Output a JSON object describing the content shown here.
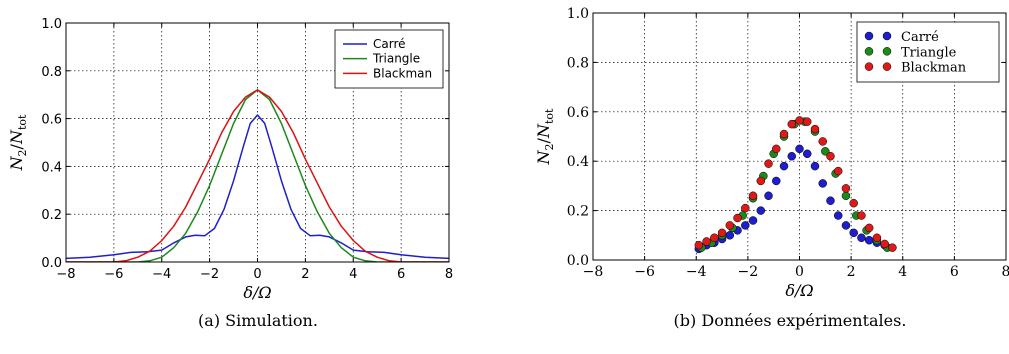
{
  "chart_data": [
    {
      "type": "line",
      "caption": "(a) Simulation.",
      "xlabel_main": "δ/Ω",
      "ylabel_main": "N",
      "ylabel_num_sub": "2",
      "ylabel_den_main": "N",
      "ylabel_den_sub": "tot",
      "xlim": [
        -8,
        8
      ],
      "ylim": [
        0,
        1
      ],
      "xticks": [
        "−8",
        "−6",
        "−4",
        "−2",
        "0",
        "2",
        "4",
        "6",
        "8"
      ],
      "yticks": [
        "0.0",
        "0.2",
        "0.4",
        "0.6",
        "0.8",
        "1.0"
      ],
      "grid": true,
      "legend_position": "top-right",
      "series": [
        {
          "name": "Carré",
          "color": "#1f1fcc",
          "points": [
            [
              -8,
              0.015
            ],
            [
              -7,
              0.02
            ],
            [
              -6,
              0.03
            ],
            [
              -5.3,
              0.04
            ],
            [
              -4.6,
              0.043
            ],
            [
              -4,
              0.05
            ],
            [
              -3.5,
              0.08
            ],
            [
              -3,
              0.105
            ],
            [
              -2.6,
              0.112
            ],
            [
              -2.2,
              0.11
            ],
            [
              -1.8,
              0.14
            ],
            [
              -1.4,
              0.22
            ],
            [
              -1,
              0.34
            ],
            [
              -0.6,
              0.48
            ],
            [
              -0.3,
              0.58
            ],
            [
              0,
              0.615
            ],
            [
              0.3,
              0.58
            ],
            [
              0.6,
              0.48
            ],
            [
              1,
              0.34
            ],
            [
              1.4,
              0.22
            ],
            [
              1.8,
              0.14
            ],
            [
              2.2,
              0.11
            ],
            [
              2.6,
              0.112
            ],
            [
              3,
              0.105
            ],
            [
              3.5,
              0.08
            ],
            [
              4,
              0.05
            ],
            [
              4.6,
              0.043
            ],
            [
              5.3,
              0.04
            ],
            [
              6,
              0.03
            ],
            [
              7,
              0.02
            ],
            [
              8,
              0.015
            ]
          ]
        },
        {
          "name": "Triangle",
          "color": "#1a8a1a",
          "points": [
            [
              -8,
              0
            ],
            [
              -5,
              0
            ],
            [
              -4.5,
              0.005
            ],
            [
              -4,
              0.02
            ],
            [
              -3.5,
              0.06
            ],
            [
              -3,
              0.12
            ],
            [
              -2.5,
              0.21
            ],
            [
              -2,
              0.32
            ],
            [
              -1.5,
              0.45
            ],
            [
              -1,
              0.58
            ],
            [
              -0.5,
              0.68
            ],
            [
              0,
              0.72
            ],
            [
              0.5,
              0.68
            ],
            [
              1,
              0.58
            ],
            [
              1.5,
              0.45
            ],
            [
              2,
              0.32
            ],
            [
              2.5,
              0.21
            ],
            [
              3,
              0.12
            ],
            [
              3.5,
              0.06
            ],
            [
              4,
              0.02
            ],
            [
              4.5,
              0.005
            ],
            [
              5,
              0
            ],
            [
              8,
              0
            ]
          ]
        },
        {
          "name": "Blackman",
          "color": "#dd1111",
          "points": [
            [
              -8,
              0
            ],
            [
              -6,
              0
            ],
            [
              -5.5,
              0.005
            ],
            [
              -5,
              0.02
            ],
            [
              -4.5,
              0.045
            ],
            [
              -4,
              0.09
            ],
            [
              -3.5,
              0.15
            ],
            [
              -3,
              0.23
            ],
            [
              -2.5,
              0.33
            ],
            [
              -2,
              0.43
            ],
            [
              -1.5,
              0.54
            ],
            [
              -1,
              0.63
            ],
            [
              -0.5,
              0.69
            ],
            [
              0,
              0.72
            ],
            [
              0.5,
              0.69
            ],
            [
              1,
              0.63
            ],
            [
              1.5,
              0.54
            ],
            [
              2,
              0.43
            ],
            [
              2.5,
              0.33
            ],
            [
              3,
              0.23
            ],
            [
              3.5,
              0.15
            ],
            [
              4,
              0.09
            ],
            [
              4.5,
              0.045
            ],
            [
              5,
              0.02
            ],
            [
              5.5,
              0.005
            ],
            [
              6,
              0
            ],
            [
              8,
              0
            ]
          ]
        }
      ]
    },
    {
      "type": "scatter",
      "caption": "(b) Données expérimentales.",
      "xlabel_main": "δ/Ω",
      "ylabel_main": "N",
      "ylabel_num_sub": "2",
      "ylabel_den_main": "N",
      "ylabel_den_sub": "tot",
      "xlim": [
        -8,
        8
      ],
      "ylim": [
        0,
        1
      ],
      "xticks": [
        "−8",
        "−6",
        "−4",
        "−2",
        "0",
        "2",
        "4",
        "6",
        "8"
      ],
      "yticks": [
        "0.0",
        "0.2",
        "0.4",
        "0.6",
        "0.8",
        "1.0"
      ],
      "grid": true,
      "legend_position": "top-right",
      "series": [
        {
          "name": "Carré",
          "color": "#1e1ecc",
          "points": [
            [
              -3.9,
              0.045
            ],
            [
              -3.6,
              0.06
            ],
            [
              -3.3,
              0.07
            ],
            [
              -3,
              0.085
            ],
            [
              -2.7,
              0.1
            ],
            [
              -2.4,
              0.12
            ],
            [
              -2.1,
              0.14
            ],
            [
              -1.8,
              0.16
            ],
            [
              -1.5,
              0.2
            ],
            [
              -1.2,
              0.26
            ],
            [
              -0.9,
              0.32
            ],
            [
              -0.6,
              0.38
            ],
            [
              -0.3,
              0.42
            ],
            [
              0,
              0.45
            ],
            [
              0.3,
              0.43
            ],
            [
              0.6,
              0.38
            ],
            [
              0.9,
              0.31
            ],
            [
              1.2,
              0.24
            ],
            [
              1.5,
              0.18
            ],
            [
              1.8,
              0.14
            ],
            [
              2.1,
              0.11
            ],
            [
              2.4,
              0.09
            ],
            [
              2.7,
              0.08
            ],
            [
              3,
              0.07
            ],
            [
              3.3,
              0.06
            ]
          ]
        },
        {
          "name": "Triangle",
          "color": "#1a8a1a",
          "points": [
            [
              -3.8,
              0.05
            ],
            [
              -3.4,
              0.07
            ],
            [
              -3,
              0.1
            ],
            [
              -2.6,
              0.13
            ],
            [
              -2.2,
              0.18
            ],
            [
              -1.8,
              0.25
            ],
            [
              -1.4,
              0.34
            ],
            [
              -1,
              0.43
            ],
            [
              -0.6,
              0.5
            ],
            [
              -0.2,
              0.55
            ],
            [
              0.2,
              0.56
            ],
            [
              0.6,
              0.52
            ],
            [
              1,
              0.44
            ],
            [
              1.4,
              0.35
            ],
            [
              1.8,
              0.26
            ],
            [
              2.2,
              0.18
            ],
            [
              2.6,
              0.12
            ],
            [
              3,
              0.08
            ],
            [
              3.4,
              0.05
            ]
          ]
        },
        {
          "name": "Blackman",
          "color": "#dd1a1a",
          "points": [
            [
              -3.9,
              0.06
            ],
            [
              -3.6,
              0.075
            ],
            [
              -3.3,
              0.09
            ],
            [
              -3,
              0.11
            ],
            [
              -2.7,
              0.14
            ],
            [
              -2.4,
              0.17
            ],
            [
              -2.1,
              0.21
            ],
            [
              -1.8,
              0.26
            ],
            [
              -1.5,
              0.32
            ],
            [
              -1.2,
              0.39
            ],
            [
              -0.9,
              0.45
            ],
            [
              -0.6,
              0.51
            ],
            [
              -0.3,
              0.55
            ],
            [
              0,
              0.565
            ],
            [
              0.3,
              0.56
            ],
            [
              0.6,
              0.53
            ],
            [
              0.9,
              0.48
            ],
            [
              1.2,
              0.42
            ],
            [
              1.5,
              0.36
            ],
            [
              1.8,
              0.29
            ],
            [
              2.1,
              0.23
            ],
            [
              2.4,
              0.18
            ],
            [
              2.7,
              0.13
            ],
            [
              3,
              0.09
            ],
            [
              3.3,
              0.065
            ],
            [
              3.6,
              0.05
            ]
          ]
        }
      ]
    }
  ]
}
